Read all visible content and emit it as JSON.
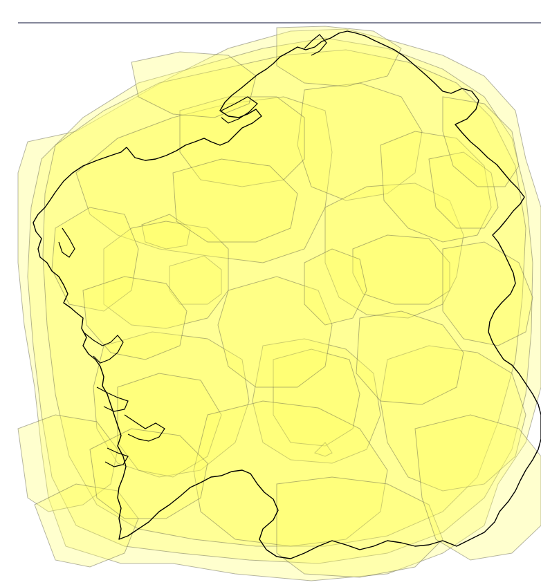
{
  "map": {
    "fill_color": "#ffff66",
    "fill_opacity": 0.32,
    "polygon_stroke": "#5a5a4a",
    "outline_stroke": "#000000",
    "top_rule_color": "#3a3f5c"
  }
}
